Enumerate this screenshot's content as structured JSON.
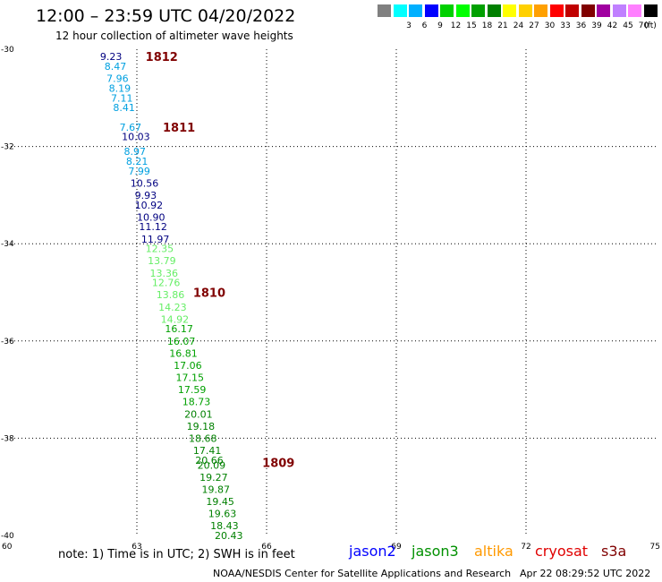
{
  "title": "12:00 – 23:59 UTC 04/20/2022",
  "subtitle": "12 hour collection of altimeter wave heights",
  "color_scale": {
    "unit": "(ft)",
    "bins": [
      {
        "label": "",
        "color": "#808080"
      },
      {
        "label": "3",
        "color": "#00ffff"
      },
      {
        "label": "6",
        "color": "#00b0ff"
      },
      {
        "label": "9",
        "color": "#0000ff"
      },
      {
        "label": "12",
        "color": "#00d000"
      },
      {
        "label": "15",
        "color": "#00ff00"
      },
      {
        "label": "18",
        "color": "#00a000"
      },
      {
        "label": "21",
        "color": "#008000"
      },
      {
        "label": "24",
        "color": "#ffff00"
      },
      {
        "label": "27",
        "color": "#ffd000"
      },
      {
        "label": "30",
        "color": "#ffa000"
      },
      {
        "label": "33",
        "color": "#ff0000"
      },
      {
        "label": "36",
        "color": "#c00000"
      },
      {
        "label": "39",
        "color": "#800000"
      },
      {
        "label": "42",
        "color": "#a000a0"
      },
      {
        "label": "45",
        "color": "#c080ff"
      },
      {
        "label": "70",
        "color": "#ff80ff"
      },
      {
        "label": "",
        "color": "#000000"
      }
    ]
  },
  "map": {
    "lon_range": [
      60,
      75
    ],
    "lat_range": [
      -40,
      -30
    ],
    "lon_ticks": [
      "60",
      "63",
      "66",
      "69",
      "72",
      "75"
    ],
    "lat_ticks": [
      "-30",
      "-32",
      "-34",
      "-36",
      "-38",
      "-40"
    ],
    "grid": true
  },
  "track_labels": [
    {
      "text": "1812",
      "lon": 63.2,
      "lat": -30.15,
      "color": "#800000"
    },
    {
      "text": "1811",
      "lon": 63.6,
      "lat": -31.6,
      "color": "#800000"
    },
    {
      "text": "1810",
      "lon": 64.3,
      "lat": -35.0,
      "color": "#800000"
    },
    {
      "text": "1809",
      "lon": 65.9,
      "lat": -38.5,
      "color": "#800000"
    }
  ],
  "observations": [
    {
      "lon": 62.15,
      "lat": -30.15,
      "swh": "9.23",
      "color": "#000080"
    },
    {
      "lon": 62.25,
      "lat": -30.35,
      "swh": "8.47",
      "color": "#00a0e0"
    },
    {
      "lon": 62.3,
      "lat": -30.6,
      "swh": "7.96",
      "color": "#00a0e0"
    },
    {
      "lon": 62.35,
      "lat": -30.8,
      "swh": "8.19",
      "color": "#00a0e0"
    },
    {
      "lon": 62.4,
      "lat": -31.0,
      "swh": "7.11",
      "color": "#00a0e0"
    },
    {
      "lon": 62.45,
      "lat": -31.2,
      "swh": "8.41",
      "color": "#00a0e0"
    },
    {
      "lon": 62.6,
      "lat": -31.6,
      "swh": "7.67",
      "color": "#00a0e0"
    },
    {
      "lon": 62.65,
      "lat": -31.8,
      "swh": "10.03",
      "color": "#000080"
    },
    {
      "lon": 62.7,
      "lat": -32.1,
      "swh": "8.97",
      "color": "#00a0e0"
    },
    {
      "lon": 62.75,
      "lat": -32.3,
      "swh": "8.21",
      "color": "#00a0e0"
    },
    {
      "lon": 62.8,
      "lat": -32.5,
      "swh": "7.99",
      "color": "#00a0e0"
    },
    {
      "lon": 62.85,
      "lat": -32.75,
      "swh": "10.56",
      "color": "#000080"
    },
    {
      "lon": 62.95,
      "lat": -33.0,
      "swh": "9.93",
      "color": "#000080"
    },
    {
      "lon": 62.95,
      "lat": -33.2,
      "swh": "10.92",
      "color": "#000080"
    },
    {
      "lon": 63.0,
      "lat": -33.45,
      "swh": "10.90",
      "color": "#000080"
    },
    {
      "lon": 63.05,
      "lat": -33.65,
      "swh": "11.12",
      "color": "#000080"
    },
    {
      "lon": 63.1,
      "lat": -33.9,
      "swh": "11.97",
      "color": "#000080"
    },
    {
      "lon": 63.2,
      "lat": -34.1,
      "swh": "12.35",
      "color": "#66ee66"
    },
    {
      "lon": 63.25,
      "lat": -34.35,
      "swh": "13.79",
      "color": "#66ee66"
    },
    {
      "lon": 63.3,
      "lat": -34.6,
      "swh": "13.36",
      "color": "#66ee66"
    },
    {
      "lon": 63.35,
      "lat": -34.8,
      "swh": "12.76",
      "color": "#66ee66"
    },
    {
      "lon": 63.45,
      "lat": -35.05,
      "swh": "13.86",
      "color": "#66ee66"
    },
    {
      "lon": 63.5,
      "lat": -35.3,
      "swh": "14.23",
      "color": "#66ee66"
    },
    {
      "lon": 63.55,
      "lat": -35.55,
      "swh": "14.92",
      "color": "#66ee66"
    },
    {
      "lon": 63.65,
      "lat": -35.75,
      "swh": "16.17",
      "color": "#00a000"
    },
    {
      "lon": 63.7,
      "lat": -36.0,
      "swh": "16.07",
      "color": "#00a000"
    },
    {
      "lon": 63.75,
      "lat": -36.25,
      "swh": "16.81",
      "color": "#00a000"
    },
    {
      "lon": 63.85,
      "lat": -36.5,
      "swh": "17.06",
      "color": "#00a000"
    },
    {
      "lon": 63.9,
      "lat": -36.75,
      "swh": "17.15",
      "color": "#00a000"
    },
    {
      "lon": 63.95,
      "lat": -37.0,
      "swh": "17.59",
      "color": "#00a000"
    },
    {
      "lon": 64.05,
      "lat": -37.25,
      "swh": "18.73",
      "color": "#00a000"
    },
    {
      "lon": 64.1,
      "lat": -37.5,
      "swh": "20.01",
      "color": "#008000"
    },
    {
      "lon": 64.15,
      "lat": -37.75,
      "swh": "19.18",
      "color": "#008000"
    },
    {
      "lon": 64.2,
      "lat": -38.0,
      "swh": "18.68",
      "color": "#008000"
    },
    {
      "lon": 64.3,
      "lat": -38.25,
      "swh": "17.41",
      "color": "#008000"
    },
    {
      "lon": 64.35,
      "lat": -38.45,
      "swh": "20.66",
      "color": "#008000"
    },
    {
      "lon": 64.4,
      "lat": -38.55,
      "swh": "20.09",
      "color": "#008000"
    },
    {
      "lon": 64.45,
      "lat": -38.8,
      "swh": "19.27",
      "color": "#008000"
    },
    {
      "lon": 64.5,
      "lat": -39.05,
      "swh": "19.87",
      "color": "#008000"
    },
    {
      "lon": 64.6,
      "lat": -39.3,
      "swh": "19.45",
      "color": "#008000"
    },
    {
      "lon": 64.65,
      "lat": -39.55,
      "swh": "19.63",
      "color": "#008000"
    },
    {
      "lon": 64.7,
      "lat": -39.8,
      "swh": "18.43",
      "color": "#008000"
    },
    {
      "lon": 64.8,
      "lat": -40.0,
      "swh": "20.43",
      "color": "#008000"
    }
  ],
  "note": "note: 1) Time is in UTC; 2) SWH is in feet",
  "satellites": [
    {
      "name": "jason2",
      "color": "#0000ff"
    },
    {
      "name": "jason3",
      "color": "#009000"
    },
    {
      "name": "altika",
      "color": "#ff9900"
    },
    {
      "name": "cryosat",
      "color": "#e00000"
    },
    {
      "name": "s3a",
      "color": "#800000"
    }
  ],
  "footer": {
    "credit": "NOAA/NESDIS Center for Satellite Applications and Research",
    "timestamp": "Apr 22 08:29:52 UTC 2022"
  }
}
